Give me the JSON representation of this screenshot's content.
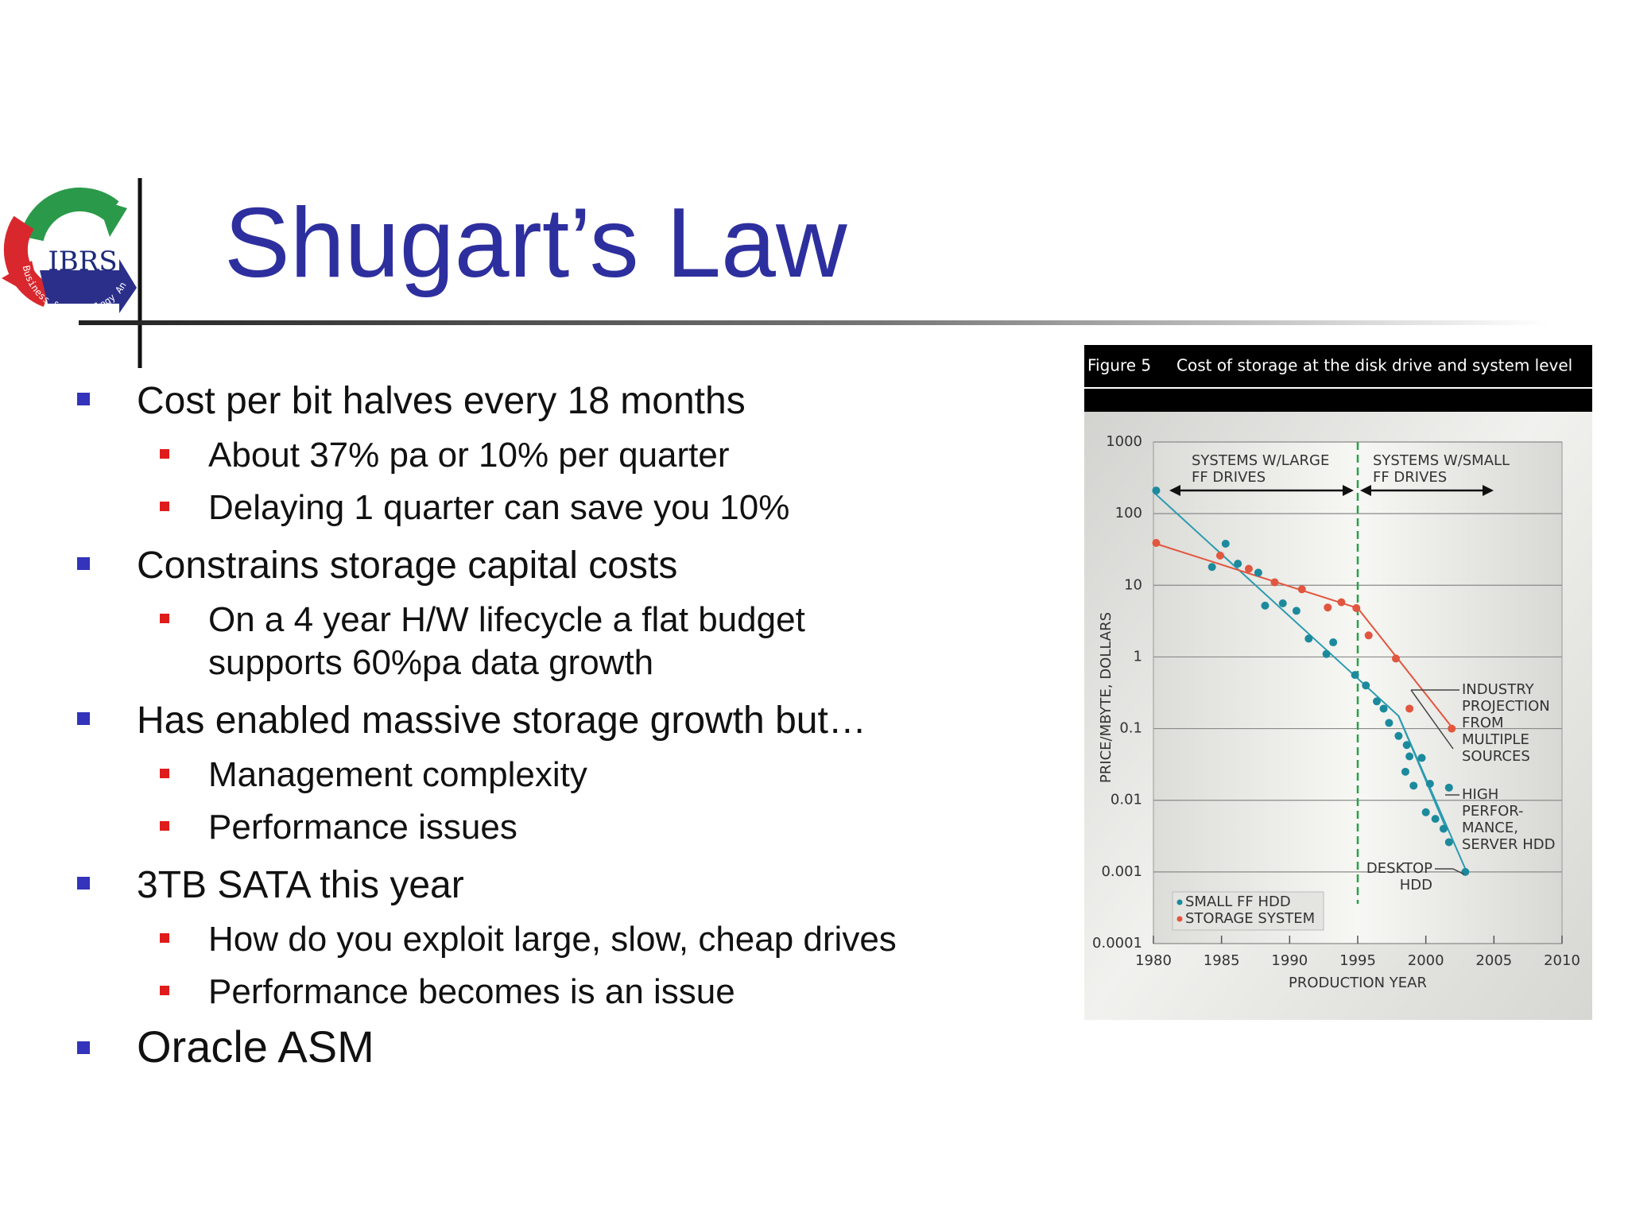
{
  "logo": {
    "name": "IBRS",
    "tagline": "Business & Technology Analysis"
  },
  "title": "Shugart’s Law",
  "bullets": [
    {
      "lines": [
        "Cost per bit halves every 18 months"
      ],
      "sub": [
        {
          "lines": [
            "About 37% pa or 10% per quarter"
          ]
        },
        {
          "lines": [
            "Delaying 1 quarter can save you 10%"
          ]
        }
      ]
    },
    {
      "lines": [
        "Constrains storage capital costs"
      ],
      "sub": [
        {
          "lines": [
            "On a 4 year H/W lifecycle a flat budget",
            "supports 60%pa data growth"
          ]
        }
      ]
    },
    {
      "lines": [
        "Has enabled massive storage growth but…"
      ],
      "sub": [
        {
          "lines": [
            "Management complexity"
          ]
        },
        {
          "lines": [
            "Performance issues"
          ]
        }
      ]
    },
    {
      "lines": [
        "3TB SATA this year"
      ],
      "sub": [
        {
          "lines": [
            "How do you exploit large, slow, cheap drives"
          ]
        },
        {
          "lines": [
            "Performance becomes is an issue"
          ]
        }
      ]
    },
    {
      "lines": [
        "Oracle ASM"
      ]
    }
  ],
  "chart_data": {
    "type": "scatter",
    "title": "Figure 5",
    "subtitle": "Cost of storage at the disk drive and system level",
    "xlabel": "PRODUCTION YEAR",
    "ylabel": "PRICE/MBYTE, DOLLARS",
    "xlim": [
      1980,
      2010
    ],
    "xticks": [
      1980,
      1985,
      1990,
      1995,
      2000,
      2005,
      2010
    ],
    "ylim": [
      0.0001,
      1000
    ],
    "yticks": [
      1000,
      100,
      10,
      1,
      0.1,
      0.01,
      0.001,
      0.0001
    ],
    "log_y": true,
    "grid": true,
    "legend": "bottom-left",
    "series": [
      {
        "name": "SMALL FF HDD",
        "color": "#1c8a9c",
        "x": [
          1980.2,
          1984.3,
          1985.3,
          1986.2,
          1987.7,
          1988.2,
          1989.5,
          1990.5,
          1991.4,
          1992.7,
          1993.2,
          1994.8,
          1995.6,
          1996.4,
          1996.9,
          1997.3,
          1998.0,
          1998.6,
          1998.8,
          1998.5,
          1999.1,
          1999.7,
          2000.3,
          2000.0,
          2000.7,
          2001.3,
          2001.7,
          2001.7,
          2002.9
        ],
        "values": [
          210,
          18,
          38,
          20,
          15,
          5.2,
          5.6,
          4.4,
          1.8,
          1.1,
          1.6,
          0.56,
          0.4,
          0.24,
          0.19,
          0.12,
          0.079,
          0.059,
          0.041,
          0.025,
          0.016,
          0.039,
          0.017,
          0.0068,
          0.0055,
          0.004,
          0.015,
          0.0026,
          0.001
        ]
      },
      {
        "name": "STORAGE SYSTEM",
        "color": "#e2563f",
        "x": [
          1980.2,
          1984.9,
          1987.0,
          1988.9,
          1990.9,
          1992.8,
          1993.8,
          1994.9,
          1995.8,
          1997.8,
          1998.8,
          2001.9
        ],
        "values": [
          39,
          26,
          17,
          11,
          8.8,
          4.9,
          5.8,
          4.8,
          2.0,
          0.95,
          0.19,
          0.1
        ]
      }
    ],
    "trend_lines": [
      {
        "color": "#2a9bb0",
        "x": [
          1980,
          1995,
          1998,
          2003
        ],
        "values": [
          200,
          0.5,
          0.15,
          0.001
        ]
      },
      {
        "color": "#2a9bb0",
        "x": [
          1998,
          2001.5
        ],
        "values": [
          0.15,
          0.004
        ]
      },
      {
        "color": "#e2563f",
        "x": [
          1980,
          1995,
          2002
        ],
        "values": [
          39,
          4.8,
          0.1
        ]
      }
    ],
    "vline": {
      "x": 1995,
      "color": "#2aa04a"
    },
    "annotations": [
      {
        "lines": [
          "SYSTEMS W/LARGE",
          "FF DRIVES"
        ]
      },
      {
        "lines": [
          "SYSTEMS W/SMALL",
          "FF DRIVES"
        ]
      },
      {
        "lines": [
          "INDUSTRY",
          "PROJECTION",
          "FROM",
          "MULTIPLE",
          "SOURCES"
        ]
      },
      {
        "lines": [
          "HIGH",
          "PERFOR-",
          "MANCE,",
          "SERVER HDD"
        ]
      },
      {
        "lines": [
          "DESKTOP",
          "HDD"
        ]
      }
    ]
  }
}
